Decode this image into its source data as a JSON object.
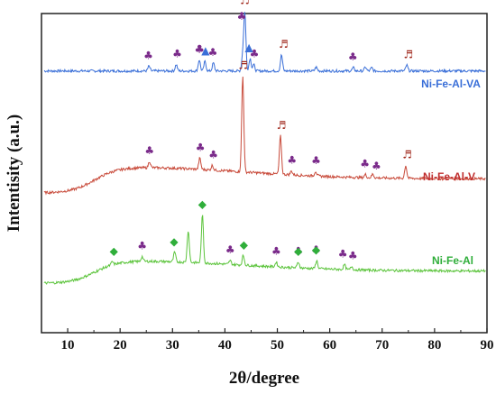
{
  "chart_data": {
    "type": "line",
    "xlabel": "2θ/degree",
    "ylabel": "Intentisity (a.u.)",
    "xlim": [
      5,
      90
    ],
    "xticks": [
      "10",
      "20",
      "30",
      "40",
      "50",
      "60",
      "70",
      "80",
      "90"
    ],
    "yticks": [],
    "grid": false,
    "legend": "inline labels at right end of each trace",
    "series": [
      {
        "name": "Ni-Fe-Al-VA",
        "color": "#3a6fd8",
        "label_color": "#3a6fd8",
        "baseline": 0.82,
        "hump": 0.0,
        "peaks": [
          {
            "x": 25.5,
            "h": 0.015
          },
          {
            "x": 30.7,
            "h": 0.02
          },
          {
            "x": 35.1,
            "h": 0.035
          },
          {
            "x": 36.2,
            "h": 0.03
          },
          {
            "x": 37.8,
            "h": 0.025
          },
          {
            "x": 43.4,
            "h": 0.05
          },
          {
            "x": 43.8,
            "h": 0.18
          },
          {
            "x": 44.8,
            "h": 0.04
          },
          {
            "x": 45.5,
            "h": 0.02
          },
          {
            "x": 50.8,
            "h": 0.05
          },
          {
            "x": 57.4,
            "h": 0.012
          },
          {
            "x": 64.5,
            "h": 0.01
          },
          {
            "x": 66.8,
            "h": 0.012
          },
          {
            "x": 68.0,
            "h": 0.01
          },
          {
            "x": 74.7,
            "h": 0.018
          }
        ]
      },
      {
        "name": "Ni-Fe-Al-V",
        "color": "#c84a3a",
        "label_color": "#c03030",
        "baseline": 0.49,
        "hump": 0.08,
        "peaks": [
          {
            "x": 25.6,
            "h": 0.02
          },
          {
            "x": 35.2,
            "h": 0.035
          },
          {
            "x": 37.6,
            "h": 0.015
          },
          {
            "x": 43.4,
            "h": 0.3
          },
          {
            "x": 50.6,
            "h": 0.12
          },
          {
            "x": 52.7,
            "h": 0.012
          },
          {
            "x": 57.3,
            "h": 0.015
          },
          {
            "x": 66.8,
            "h": 0.01
          },
          {
            "x": 68.2,
            "h": 0.012
          },
          {
            "x": 74.5,
            "h": 0.04
          }
        ]
      },
      {
        "name": "Ni-Fe-Al",
        "color": "#5cc43c",
        "label_color": "#2fae3a",
        "baseline": 0.2,
        "hump": 0.07,
        "peaks": [
          {
            "x": 18.5,
            "h": 0.01
          },
          {
            "x": 24.2,
            "h": 0.015
          },
          {
            "x": 30.4,
            "h": 0.03
          },
          {
            "x": 33.0,
            "h": 0.1
          },
          {
            "x": 35.7,
            "h": 0.15
          },
          {
            "x": 41.0,
            "h": 0.012
          },
          {
            "x": 43.5,
            "h": 0.03
          },
          {
            "x": 49.8,
            "h": 0.015
          },
          {
            "x": 54.0,
            "h": 0.018
          },
          {
            "x": 57.5,
            "h": 0.025
          },
          {
            "x": 62.8,
            "h": 0.015
          },
          {
            "x": 64.2,
            "h": 0.01
          }
        ]
      }
    ],
    "markers": [
      {
        "series": "Ni-Fe-Al-VA",
        "symbol": "♣",
        "color": "#7a2a8a",
        "x": 25.4
      },
      {
        "series": "Ni-Fe-Al-VA",
        "symbol": "♣",
        "color": "#7a2a8a",
        "x": 30.9
      },
      {
        "series": "Ni-Fe-Al-VA",
        "symbol": "♣",
        "color": "#7a2a8a",
        "x": 35.1
      },
      {
        "series": "Ni-Fe-Al-VA",
        "symbol": "♣",
        "color": "#7a2a8a",
        "x": 35.2
      },
      {
        "series": "Ni-Fe-Al-VA",
        "symbol": "▲",
        "color": "#3a6fd8",
        "x": 36.3
      },
      {
        "series": "Ni-Fe-Al-VA",
        "symbol": "♣",
        "color": "#7a2a8a",
        "x": 37.7
      },
      {
        "series": "Ni-Fe-Al-VA",
        "symbol": "♬",
        "color": "#a0281c",
        "x": 43.8
      },
      {
        "series": "Ni-Fe-Al-VA",
        "symbol": "♣",
        "color": "#7a2a8a",
        "x": 43.2
      },
      {
        "series": "Ni-Fe-Al-VA",
        "symbol": "▲",
        "color": "#3a6fd8",
        "x": 44.6
      },
      {
        "series": "Ni-Fe-Al-VA",
        "symbol": "♣",
        "color": "#7a2a8a",
        "x": 45.6
      },
      {
        "series": "Ni-Fe-Al-VA",
        "symbol": "♬",
        "color": "#a0281c",
        "x": 51.2
      },
      {
        "series": "Ni-Fe-Al-VA",
        "symbol": "♣",
        "color": "#7a2a8a",
        "x": 64.4
      },
      {
        "series": "Ni-Fe-Al-VA",
        "symbol": "♬",
        "color": "#a0281c",
        "x": 75.0
      },
      {
        "series": "Ni-Fe-Al-V",
        "symbol": "♬",
        "color": "#a0281c",
        "x": 43.5
      },
      {
        "series": "Ni-Fe-Al-V",
        "symbol": "♣",
        "color": "#7a2a8a",
        "x": 25.6
      },
      {
        "series": "Ni-Fe-Al-V",
        "symbol": "♣",
        "color": "#7a2a8a",
        "x": 35.3
      },
      {
        "series": "Ni-Fe-Al-V",
        "symbol": "♣",
        "color": "#7a2a8a",
        "x": 37.8
      },
      {
        "series": "Ni-Fe-Al-V",
        "symbol": "♬",
        "color": "#a0281c",
        "x": 50.8
      },
      {
        "series": "Ni-Fe-Al-V",
        "symbol": "♣",
        "color": "#7a2a8a",
        "x": 52.8
      },
      {
        "series": "Ni-Fe-Al-V",
        "symbol": "♣",
        "color": "#7a2a8a",
        "x": 57.4
      },
      {
        "series": "Ni-Fe-Al-V",
        "symbol": "♣",
        "color": "#7a2a8a",
        "x": 66.7
      },
      {
        "series": "Ni-Fe-Al-V",
        "symbol": "♣",
        "color": "#7a2a8a",
        "x": 68.9
      },
      {
        "series": "Ni-Fe-Al-V",
        "symbol": "♬",
        "color": "#a0281c",
        "x": 74.8
      },
      {
        "series": "Ni-Fe-Al",
        "symbol": "◆",
        "color": "#2fae3a",
        "x": 18.8
      },
      {
        "series": "Ni-Fe-Al",
        "symbol": "♣",
        "color": "#7a2a8a",
        "x": 24.2
      },
      {
        "series": "Ni-Fe-Al",
        "symbol": "◆",
        "color": "#2fae3a",
        "x": 30.3
      },
      {
        "series": "Ni-Fe-Al",
        "symbol": "◆",
        "color": "#2fae3a",
        "x": 35.7
      },
      {
        "series": "Ni-Fe-Al",
        "symbol": "♣",
        "color": "#7a2a8a",
        "x": 41.0
      },
      {
        "series": "Ni-Fe-Al",
        "symbol": "◆",
        "color": "#2fae3a",
        "x": 43.6
      },
      {
        "series": "Ni-Fe-Al",
        "symbol": "♣",
        "color": "#7a2a8a",
        "x": 49.8
      },
      {
        "series": "Ni-Fe-Al",
        "symbol": "♣",
        "color": "#7a2a8a",
        "x": 54.0
      },
      {
        "series": "Ni-Fe-Al",
        "symbol": "◆",
        "color": "#2fae3a",
        "x": 54.0
      },
      {
        "series": "Ni-Fe-Al",
        "symbol": "♣",
        "color": "#7a2a8a",
        "x": 57.4
      },
      {
        "series": "Ni-Fe-Al",
        "symbol": "◆",
        "color": "#2fae3a",
        "x": 57.4
      },
      {
        "series": "Ni-Fe-Al",
        "symbol": "♣",
        "color": "#7a2a8a",
        "x": 62.5
      },
      {
        "series": "Ni-Fe-Al",
        "symbol": "♣",
        "color": "#7a2a8a",
        "x": 64.4
      }
    ]
  }
}
